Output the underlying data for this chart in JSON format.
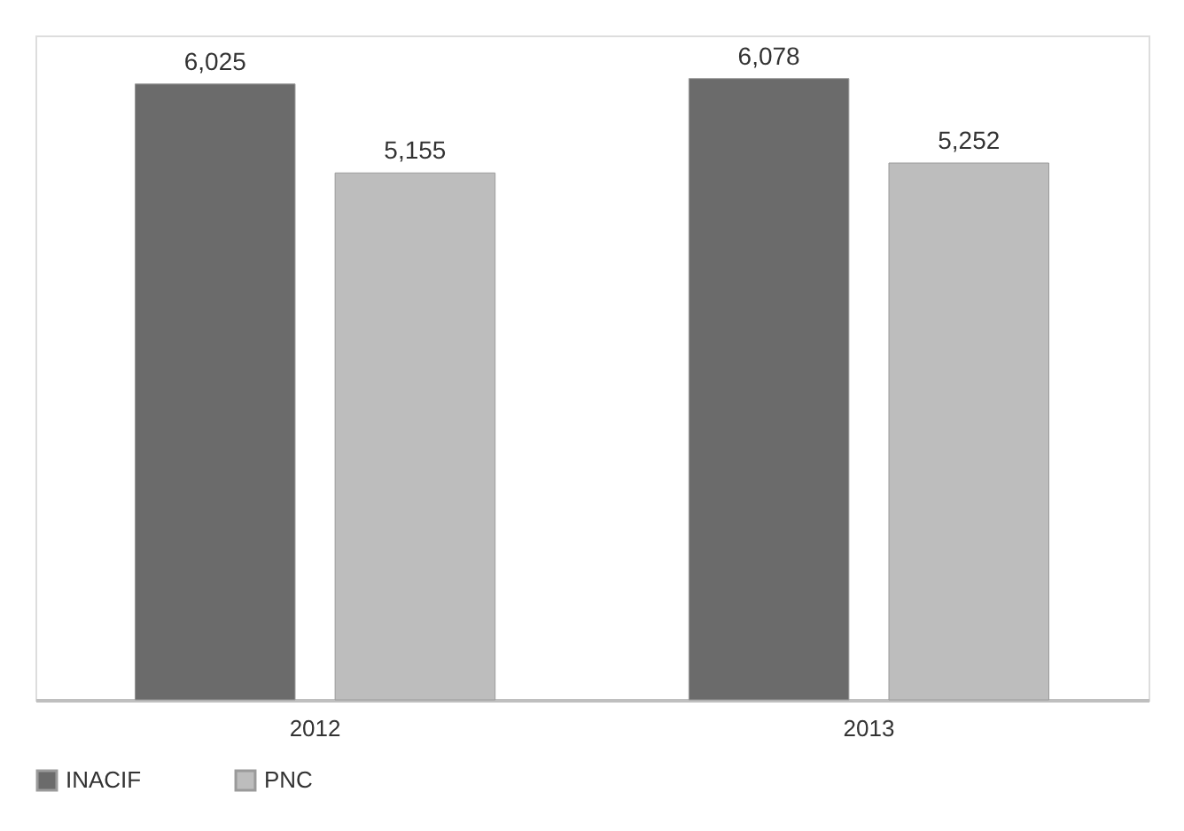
{
  "chart_data": {
    "type": "bar",
    "categories": [
      "2012",
      "2013"
    ],
    "series": [
      {
        "name": "INACIF",
        "color": "#6b6b6b",
        "values": [
          6025,
          6078
        ],
        "value_labels": [
          "6,025",
          "6,078"
        ]
      },
      {
        "name": "PNC",
        "color": "#bdbdbd",
        "values": [
          5155,
          5252
        ],
        "value_labels": [
          "5,155",
          "5,252"
        ]
      }
    ],
    "legend": "bottom",
    "grid": false
  }
}
